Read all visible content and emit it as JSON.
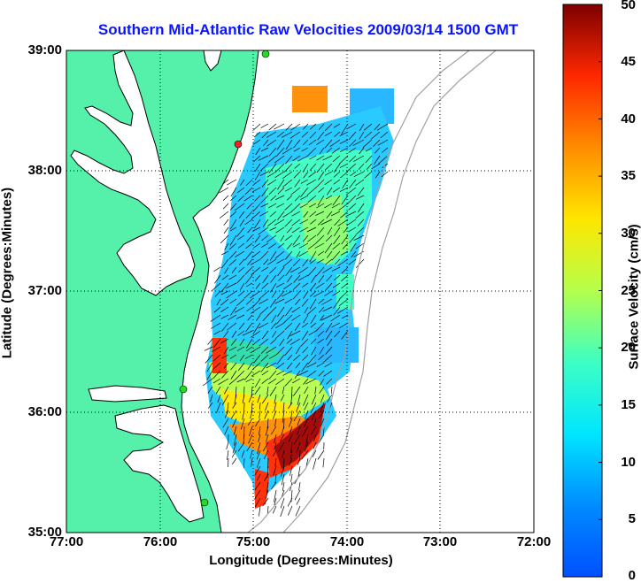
{
  "title": "Southern Mid-Atlantic Raw Velocities 2009/03/14 1500 GMT",
  "axes": {
    "xlabel": "Longitude (Degrees:Minutes)",
    "ylabel": "Latitude (Degrees:Minutes)",
    "x_ticks": [
      "77:00",
      "76:00",
      "75:00",
      "74:00",
      "73:00",
      "72:00"
    ],
    "y_ticks": [
      "39:00",
      "38:00",
      "37:00",
      "36:00",
      "35:00"
    ],
    "x_range": [
      -77,
      -72
    ],
    "y_range": [
      35,
      39
    ],
    "grid": true
  },
  "colorbar": {
    "label": "Surface Velocity (cm/s)",
    "ticks": [
      "50",
      "45",
      "40",
      "35",
      "30",
      "25",
      "20",
      "15",
      "10",
      "5",
      "0"
    ],
    "range": [
      0,
      50
    ],
    "colormap": "jet"
  },
  "colors": {
    "title": "#0a14ff",
    "land": "#55f0aa",
    "coastline": "#000000",
    "bathymetry": "#a0a0a0",
    "sites_green": "#22dd22",
    "site_red": "#ee2222"
  }
}
